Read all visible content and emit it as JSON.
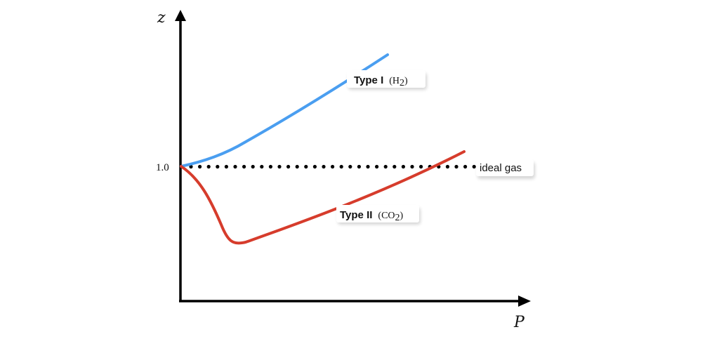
{
  "axes": {
    "y_label": "z",
    "x_label": "P",
    "y_tick": "1.0"
  },
  "labels": {
    "type1_name": "Type I",
    "type1_gas": "(H",
    "type1_sub": "2",
    "type1_close": ")",
    "type2_name": "Type II",
    "type2_gas": "(CO",
    "type2_sub": "2",
    "type2_close": ")",
    "ideal": "ideal gas"
  },
  "colors": {
    "type1": "#4a9ef0",
    "type2": "#d63c2c",
    "axis": "#000000"
  }
}
